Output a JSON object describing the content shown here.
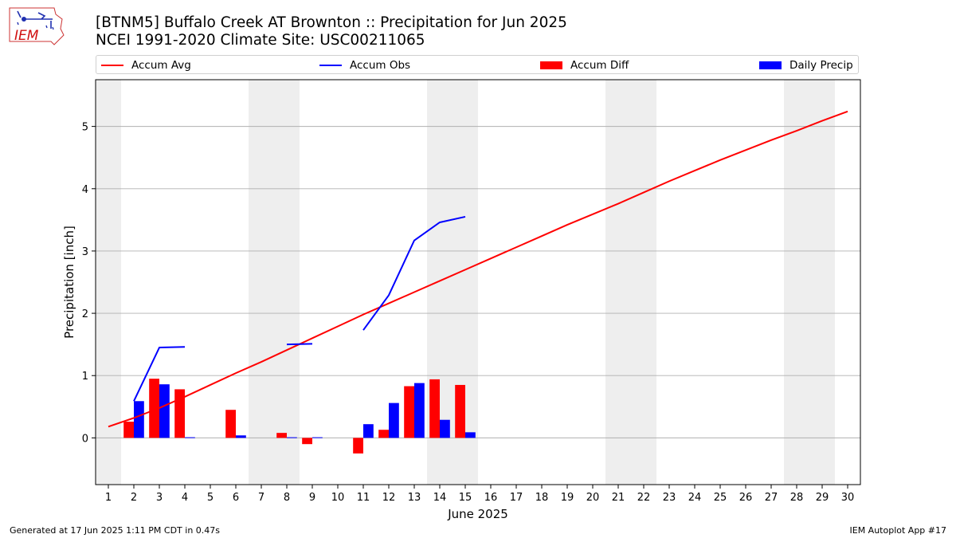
{
  "header": {
    "title_line1": "[BTNM5] Buffalo Creek  AT Brownton :: Precipitation for Jun 2025",
    "title_line2": "NCEI 1991-2020 Climate Site: USC00211065"
  },
  "logo": {
    "text": "IEM",
    "icon": "iowa-map-weather-logo"
  },
  "footer": {
    "generated": "Generated at 17 Jun 2025 1:11 PM CDT in 0.47s",
    "app": "IEM Autoplot App #17"
  },
  "colors": {
    "avg": "#ff0000",
    "obs": "#0000ff",
    "diff": "#ff0000",
    "daily": "#0000ff",
    "weekend": "#eeeeee",
    "grid": "#b0b0b0"
  },
  "chart_data": {
    "type": "bar",
    "xlabel": "June 2025",
    "ylabel": "Precipitation [inch]",
    "xlim": [
      0.5,
      30.5
    ],
    "ylim": [
      -0.75,
      5.75
    ],
    "yticks": [
      0,
      1,
      2,
      3,
      4,
      5
    ],
    "x": [
      1,
      2,
      3,
      4,
      5,
      6,
      7,
      8,
      9,
      10,
      11,
      12,
      13,
      14,
      15,
      16,
      17,
      18,
      19,
      20,
      21,
      22,
      23,
      24,
      25,
      26,
      27,
      28,
      29,
      30
    ],
    "grid": "y-major",
    "legend_position": "top",
    "shaded_days": [
      [
        0.5,
        1.5
      ],
      [
        6.5,
        8.5
      ],
      [
        13.5,
        15.5
      ],
      [
        20.5,
        22.5
      ],
      [
        27.5,
        29.5
      ]
    ],
    "legend": [
      "Accum Avg",
      "Accum Obs",
      "Accum Diff",
      "Daily Precip"
    ],
    "series": [
      {
        "name": "Accum Avg",
        "kind": "line",
        "color": "#ff0000",
        "values": [
          0.18,
          0.32,
          0.48,
          0.66,
          0.85,
          1.04,
          1.22,
          1.41,
          1.6,
          1.79,
          1.98,
          2.16,
          2.34,
          2.52,
          2.7,
          2.88,
          3.06,
          3.24,
          3.42,
          3.59,
          3.76,
          3.94,
          4.12,
          4.29,
          4.46,
          4.62,
          4.78,
          4.93,
          5.09,
          5.24
        ]
      },
      {
        "name": "Accum Obs",
        "kind": "line",
        "color": "#0000ff",
        "segments": [
          {
            "x": [
              2,
              3,
              4
            ],
            "values": [
              0.59,
              1.45,
              1.46
            ]
          },
          {
            "x": [
              8,
              9
            ],
            "values": [
              1.5,
              1.51
            ]
          },
          {
            "x": [
              11,
              12,
              13,
              14,
              15
            ],
            "values": [
              1.73,
              2.29,
              3.17,
              3.46,
              3.55
            ]
          }
        ]
      },
      {
        "name": "Accum Diff",
        "kind": "bar",
        "color": "#ff0000",
        "offset": "left",
        "x": [
          2,
          3,
          4,
          6,
          8,
          9,
          11,
          12,
          13,
          14,
          15
        ],
        "values": [
          0.26,
          0.95,
          0.78,
          0.45,
          0.08,
          -0.1,
          -0.25,
          0.13,
          0.83,
          0.94,
          0.85
        ]
      },
      {
        "name": "Daily Precip",
        "kind": "bar",
        "color": "#0000ff",
        "offset": "right",
        "x": [
          2,
          3,
          4,
          6,
          8,
          9,
          11,
          12,
          13,
          14,
          15
        ],
        "values": [
          0.59,
          0.86,
          0.01,
          0.04,
          0.01,
          0.01,
          0.22,
          0.56,
          0.88,
          0.29,
          0.09
        ]
      }
    ]
  }
}
